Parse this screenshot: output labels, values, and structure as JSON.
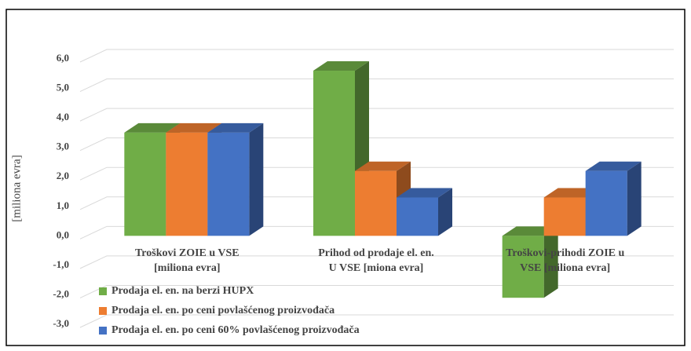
{
  "chart_data": {
    "type": "bar3d",
    "y_label": "[miliona evra]",
    "categories": [
      [
        "Troškovi ZOIE u VSE",
        "[miliona evra]"
      ],
      [
        "Prihod od prodaje el. en.",
        "U VSE [miona evra]"
      ],
      [
        "Troškovi-prihodi ZOIE u",
        "VSE [miliona evra]"
      ]
    ],
    "series": [
      {
        "name": "Prodaja el. en. na berzi HUPX",
        "color": "#70ad47",
        "values": [
          3.5,
          5.6,
          -2.1
        ]
      },
      {
        "name": "Prodaja el. en. po ceni povlašćenog proizvođača",
        "color": "#ed7d31",
        "values": [
          3.5,
          2.2,
          1.3
        ]
      },
      {
        "name": "Prodaja el. en. po ceni 60% povlašćenog proizvođača",
        "color": "#4472c4",
        "values": [
          3.5,
          1.3,
          2.2
        ]
      }
    ],
    "ylim": [
      -3,
      6
    ],
    "yticks": [
      {
        "value": -3,
        "label": "-3,0"
      },
      {
        "value": -2,
        "label": "-2,0"
      },
      {
        "value": -1,
        "label": "-1,0"
      },
      {
        "value": 0,
        "label": "0,0"
      },
      {
        "value": 1,
        "label": "1,0"
      },
      {
        "value": 2,
        "label": "2,0"
      },
      {
        "value": 3,
        "label": "3,0"
      },
      {
        "value": 4,
        "label": "4,0"
      },
      {
        "value": 5,
        "label": "5,0"
      },
      {
        "value": 6,
        "label": "6,0"
      }
    ],
    "grid": true,
    "legend": "bottom-left"
  }
}
